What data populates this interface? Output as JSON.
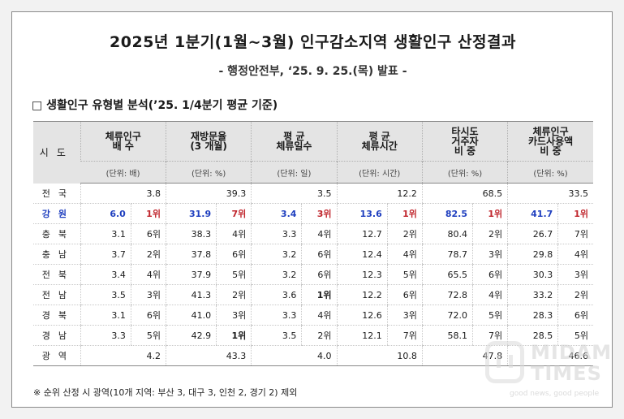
{
  "title": "2025년 1분기(1월~3월) 인구감소지역 생활인구 산정결과",
  "subtitle": "- 행정안전부, ‘25. 9. 25.(목) 발표 -",
  "section_title": "□ 생활인구 유형별 분석(’25. 1/4분기 평균 기준)",
  "header": {
    "region": "시도",
    "columns": [
      {
        "line1": "체류인구",
        "line2": "배 수",
        "unit": "(단위: 배)"
      },
      {
        "line1": "재방문율",
        "line2": "(3 개월)",
        "unit": "(단위: %)"
      },
      {
        "line1": "평 균",
        "line2": "체류일수",
        "unit": "(단위: 일)"
      },
      {
        "line1": "평 균",
        "line2": "체류시간",
        "unit": "(단위: 시간)"
      },
      {
        "line1": "타시도",
        "line2": "거주자",
        "line3": "비 중",
        "unit": "(단위: %)"
      },
      {
        "line1": "체류인구",
        "line2": "카드사용액",
        "line3": "비 중",
        "unit": "(단위: %)"
      }
    ]
  },
  "rows": [
    {
      "region": "전국",
      "values": [
        "3.8",
        "39.3",
        "3.5",
        "12.2",
        "68.5",
        "33.5"
      ],
      "ranks": [
        "",
        "",
        "",
        "",
        "",
        ""
      ]
    },
    {
      "region": "강원",
      "values": [
        "6.0",
        "31.9",
        "3.4",
        "13.6",
        "82.5",
        "41.7"
      ],
      "ranks": [
        "1위",
        "7위",
        "3위",
        "1위",
        "1위",
        "1위"
      ]
    },
    {
      "region": "충북",
      "values": [
        "3.1",
        "38.3",
        "3.3",
        "12.7",
        "80.4",
        "26.7"
      ],
      "ranks": [
        "6위",
        "4위",
        "4위",
        "2위",
        "2위",
        "7위"
      ]
    },
    {
      "region": "충남",
      "values": [
        "3.7",
        "37.8",
        "3.2",
        "12.4",
        "78.7",
        "29.8"
      ],
      "ranks": [
        "2위",
        "6위",
        "6위",
        "4위",
        "3위",
        "4위"
      ]
    },
    {
      "region": "전북",
      "values": [
        "3.4",
        "37.9",
        "3.2",
        "12.3",
        "65.5",
        "30.3"
      ],
      "ranks": [
        "4위",
        "5위",
        "6위",
        "5위",
        "6위",
        "3위"
      ]
    },
    {
      "region": "전남",
      "values": [
        "3.5",
        "41.3",
        "3.6",
        "12.2",
        "72.8",
        "33.2"
      ],
      "ranks": [
        "3위",
        "2위",
        "1위",
        "6위",
        "4위",
        "2위"
      ]
    },
    {
      "region": "경북",
      "values": [
        "3.1",
        "41.0",
        "3.3",
        "12.6",
        "72.0",
        "28.3"
      ],
      "ranks": [
        "6위",
        "3위",
        "4위",
        "3위",
        "5위",
        "6위"
      ]
    },
    {
      "region": "경남",
      "values": [
        "3.3",
        "42.9",
        "3.5",
        "12.1",
        "58.1",
        "28.5"
      ],
      "ranks": [
        "5위",
        "1위",
        "2위",
        "7위",
        "7위",
        "5위"
      ]
    },
    {
      "region": "광역",
      "values": [
        "4.2",
        "43.3",
        "4.0",
        "10.8",
        "47.8",
        "46.6"
      ],
      "ranks": [
        "",
        "",
        "",
        "",
        "",
        ""
      ]
    }
  ],
  "note": "※ 순위 산정 시 광역(10개 지역: 부산 3, 대구 3, 인천 2, 경기 2) 제외",
  "watermark": {
    "line1": "MIDAM",
    "line2": "TIMES",
    "tagline": "good news, good people"
  },
  "colors": {
    "highlight_blue": "#1f3fbf",
    "highlight_red": "#c0262d",
    "header_bg": "#e4e4e4"
  }
}
